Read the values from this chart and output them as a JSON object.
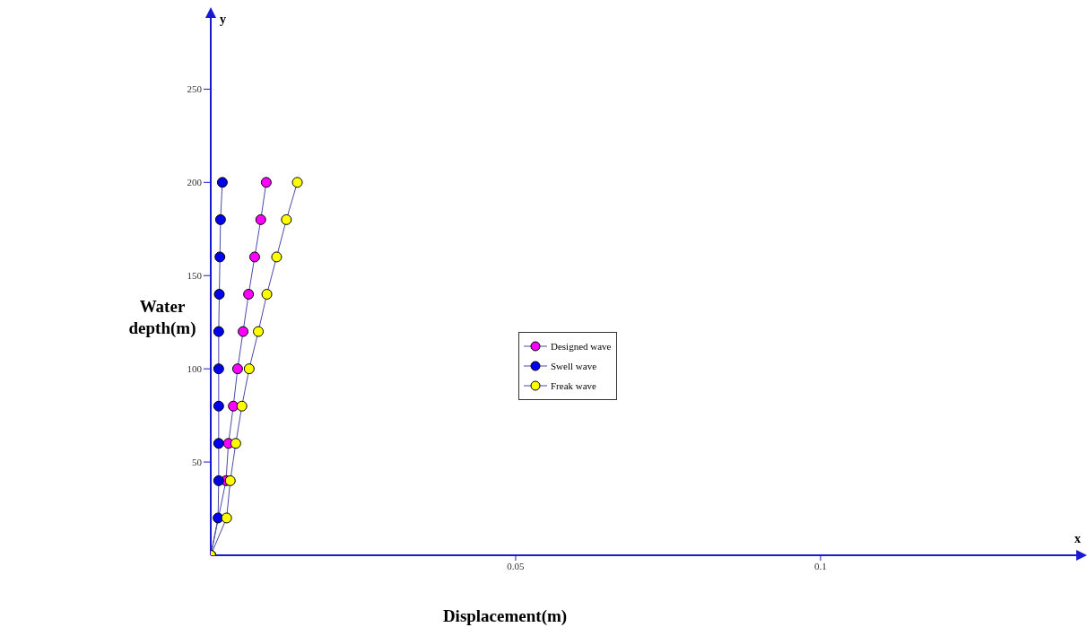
{
  "chart_data": {
    "type": "line",
    "xlabel": "Displacement(m)",
    "ylabel": "Water depth(m)",
    "annotations": [
      "x",
      "y"
    ],
    "xlim": [
      0,
      0.1434
    ],
    "xticks": [
      0.05,
      0.1
    ],
    "ylim": [
      0,
      293
    ],
    "yticks": [
      50,
      100,
      150,
      200,
      250
    ],
    "grid": false,
    "legend": "center",
    "marker": "circle",
    "line_style": "solid",
    "series": [
      {
        "name": "Designed wave",
        "color": "#ff00ff",
        "x": [
          0,
          0.0019,
          0.0025,
          0.0029,
          0.0037,
          0.0044,
          0.0053,
          0.0062,
          0.0072,
          0.0082,
          0.0091
        ],
        "values": [
          0,
          null,
          40,
          60,
          80,
          100,
          120,
          140,
          160,
          180,
          200
        ]
      },
      {
        "name": "Swell wave",
        "color": "#0000ee",
        "x": [
          0,
          0.0012,
          0.0013,
          0.0013,
          0.0013,
          0.0013,
          0.0013,
          0.0014,
          0.0015,
          0.0016,
          0.0019
        ],
        "values": [
          0,
          20,
          40,
          60,
          80,
          100,
          120,
          140,
          160,
          180,
          200
        ]
      },
      {
        "name": "Freak wave",
        "color": "#ffff00",
        "x": [
          0,
          0.0026,
          0.0032,
          0.0041,
          0.0051,
          0.0063,
          0.0078,
          0.0092,
          0.0108,
          0.0124,
          0.0142
        ],
        "values": [
          0,
          20,
          40,
          60,
          80,
          100,
          120,
          140,
          160,
          180,
          200
        ]
      }
    ]
  }
}
